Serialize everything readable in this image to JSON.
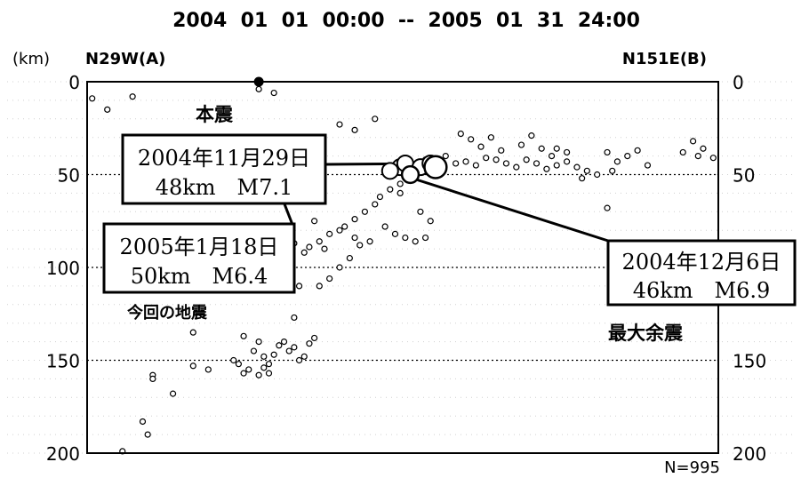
{
  "chart_data": {
    "type": "scatter",
    "title": "2004  01  01  00:00  --  2005  01  31  24:00",
    "unit_label": "(km)",
    "left_end_label": "N29W(A)",
    "right_end_label": "N151E(B)",
    "count_label": "N=995",
    "ylim": [
      0,
      200
    ],
    "y_ticks": [
      {
        "value": 0,
        "label": "0"
      },
      {
        "value": 50,
        "label": "50"
      },
      {
        "value": 100,
        "label": "100"
      },
      {
        "value": 150,
        "label": "150"
      },
      {
        "value": 200,
        "label": "200"
      }
    ],
    "grid_depths": [
      50,
      100,
      150
    ],
    "region_labels": {
      "mainshock": "本震",
      "current": "今回の地震",
      "max_aftershock": "最大余震"
    },
    "callouts": [
      {
        "line1": "2004年11月29日",
        "line2": "48km　M7.1"
      },
      {
        "line1": "2005年1月18日",
        "line2": "50km　M6.4"
      },
      {
        "line1": "2004年12月6日",
        "line2": "46km　M6.9"
      }
    ],
    "large_events": [
      {
        "name": "2004年11月29日",
        "x": 38,
        "depth": 48,
        "magnitude": 7.1
      },
      {
        "name": "2005年1月18日",
        "x": 64,
        "depth": 50,
        "magnitude": 6.4
      },
      {
        "name": "2004年12月6日",
        "x": 69,
        "depth": 46,
        "magnitude": 6.9
      }
    ],
    "events": [
      [
        1,
        9
      ],
      [
        4,
        15
      ],
      [
        9,
        8
      ],
      [
        34,
        0
      ],
      [
        34,
        4
      ],
      [
        37,
        6
      ],
      [
        50,
        23
      ],
      [
        53,
        26
      ],
      [
        57,
        20
      ],
      [
        64,
        44
      ],
      [
        65,
        46
      ],
      [
        67,
        42
      ],
      [
        71,
        40
      ],
      [
        73,
        44
      ],
      [
        75,
        43
      ],
      [
        77,
        45
      ],
      [
        79,
        41
      ],
      [
        81,
        42
      ],
      [
        83,
        44
      ],
      [
        85,
        46
      ],
      [
        87,
        42
      ],
      [
        89,
        44
      ],
      [
        91,
        47
      ],
      [
        93,
        45
      ],
      [
        95,
        43
      ],
      [
        97,
        46
      ],
      [
        99,
        48
      ],
      [
        74,
        28
      ],
      [
        76,
        31
      ],
      [
        78,
        35
      ],
      [
        80,
        30
      ],
      [
        82,
        37
      ],
      [
        86,
        34
      ],
      [
        88,
        29
      ],
      [
        90,
        36
      ],
      [
        92,
        40
      ],
      [
        101,
        50
      ],
      [
        103,
        38
      ],
      [
        105,
        43
      ],
      [
        107,
        40
      ],
      [
        109,
        37
      ],
      [
        111,
        45
      ],
      [
        93,
        36
      ],
      [
        95,
        38
      ],
      [
        66,
        48
      ],
      [
        64,
        52
      ],
      [
        62,
        55
      ],
      [
        60,
        58
      ],
      [
        58,
        62
      ],
      [
        57,
        66
      ],
      [
        55,
        70
      ],
      [
        53,
        74
      ],
      [
        51,
        78
      ],
      [
        50,
        80
      ],
      [
        48,
        82
      ],
      [
        46,
        86
      ],
      [
        44,
        89
      ],
      [
        43,
        92
      ],
      [
        53,
        84
      ],
      [
        54,
        88
      ],
      [
        56,
        86
      ],
      [
        52,
        95
      ],
      [
        50,
        100
      ],
      [
        48,
        106
      ],
      [
        46,
        110
      ],
      [
        59,
        78
      ],
      [
        61,
        82
      ],
      [
        63,
        84
      ],
      [
        65,
        86
      ],
      [
        67,
        84
      ],
      [
        62,
        60
      ],
      [
        66,
        70
      ],
      [
        68,
        75
      ],
      [
        40,
        92
      ],
      [
        41,
        87
      ],
      [
        47,
        90
      ],
      [
        45,
        75
      ],
      [
        42,
        110
      ],
      [
        28,
        85
      ],
      [
        27,
        86
      ],
      [
        30,
        80
      ],
      [
        32,
        85
      ],
      [
        36,
        83
      ],
      [
        38,
        78
      ],
      [
        44,
        60
      ],
      [
        41,
        127
      ],
      [
        31,
        137
      ],
      [
        29,
        150
      ],
      [
        33,
        145
      ],
      [
        34,
        140
      ],
      [
        35,
        148
      ],
      [
        36,
        152
      ],
      [
        37,
        147
      ],
      [
        38,
        142
      ],
      [
        39,
        140
      ],
      [
        40,
        145
      ],
      [
        41,
        143
      ],
      [
        42,
        150
      ],
      [
        43,
        148
      ],
      [
        44,
        141
      ],
      [
        45,
        138
      ],
      [
        30,
        152
      ],
      [
        31,
        157
      ],
      [
        32,
        155
      ],
      [
        34,
        158
      ],
      [
        35,
        154
      ],
      [
        36,
        157
      ],
      [
        24,
        155
      ],
      [
        13,
        158
      ],
      [
        13,
        160
      ],
      [
        17,
        168
      ],
      [
        21,
        135
      ],
      [
        21,
        153
      ],
      [
        11,
        183
      ],
      [
        12,
        190
      ],
      [
        7,
        199
      ],
      [
        118,
        38
      ],
      [
        120,
        32
      ],
      [
        121,
        40
      ],
      [
        122,
        36
      ],
      [
        124,
        41
      ],
      [
        98,
        52
      ],
      [
        104,
        48
      ],
      [
        103,
        68
      ]
    ]
  }
}
